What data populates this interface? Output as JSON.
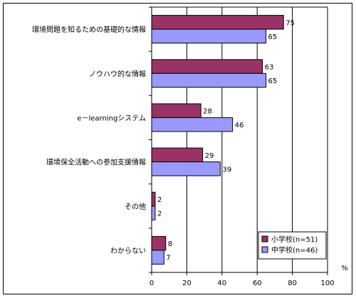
{
  "chart_data": {
    "type": "bar",
    "orientation": "horizontal",
    "categories": [
      "環境問題を知るための基礎的な情報",
      "ノウハウ的な情報",
      "e－learningシステム",
      "環境保全活動への参加支援情報",
      "その他",
      "わからない"
    ],
    "series": [
      {
        "name": "小学校(n=51)",
        "color": "#993366",
        "values": [
          75,
          63,
          28,
          29,
          2,
          8
        ]
      },
      {
        "name": "中学校(n=46)",
        "color": "#9999ff",
        "values": [
          65,
          65,
          46,
          39,
          2,
          7
        ]
      }
    ],
    "xlim": [
      0,
      100
    ],
    "xticks": [
      0,
      20,
      40,
      60,
      80,
      100
    ],
    "unit": "%",
    "grid": true,
    "legend_position": "bottom-right"
  }
}
